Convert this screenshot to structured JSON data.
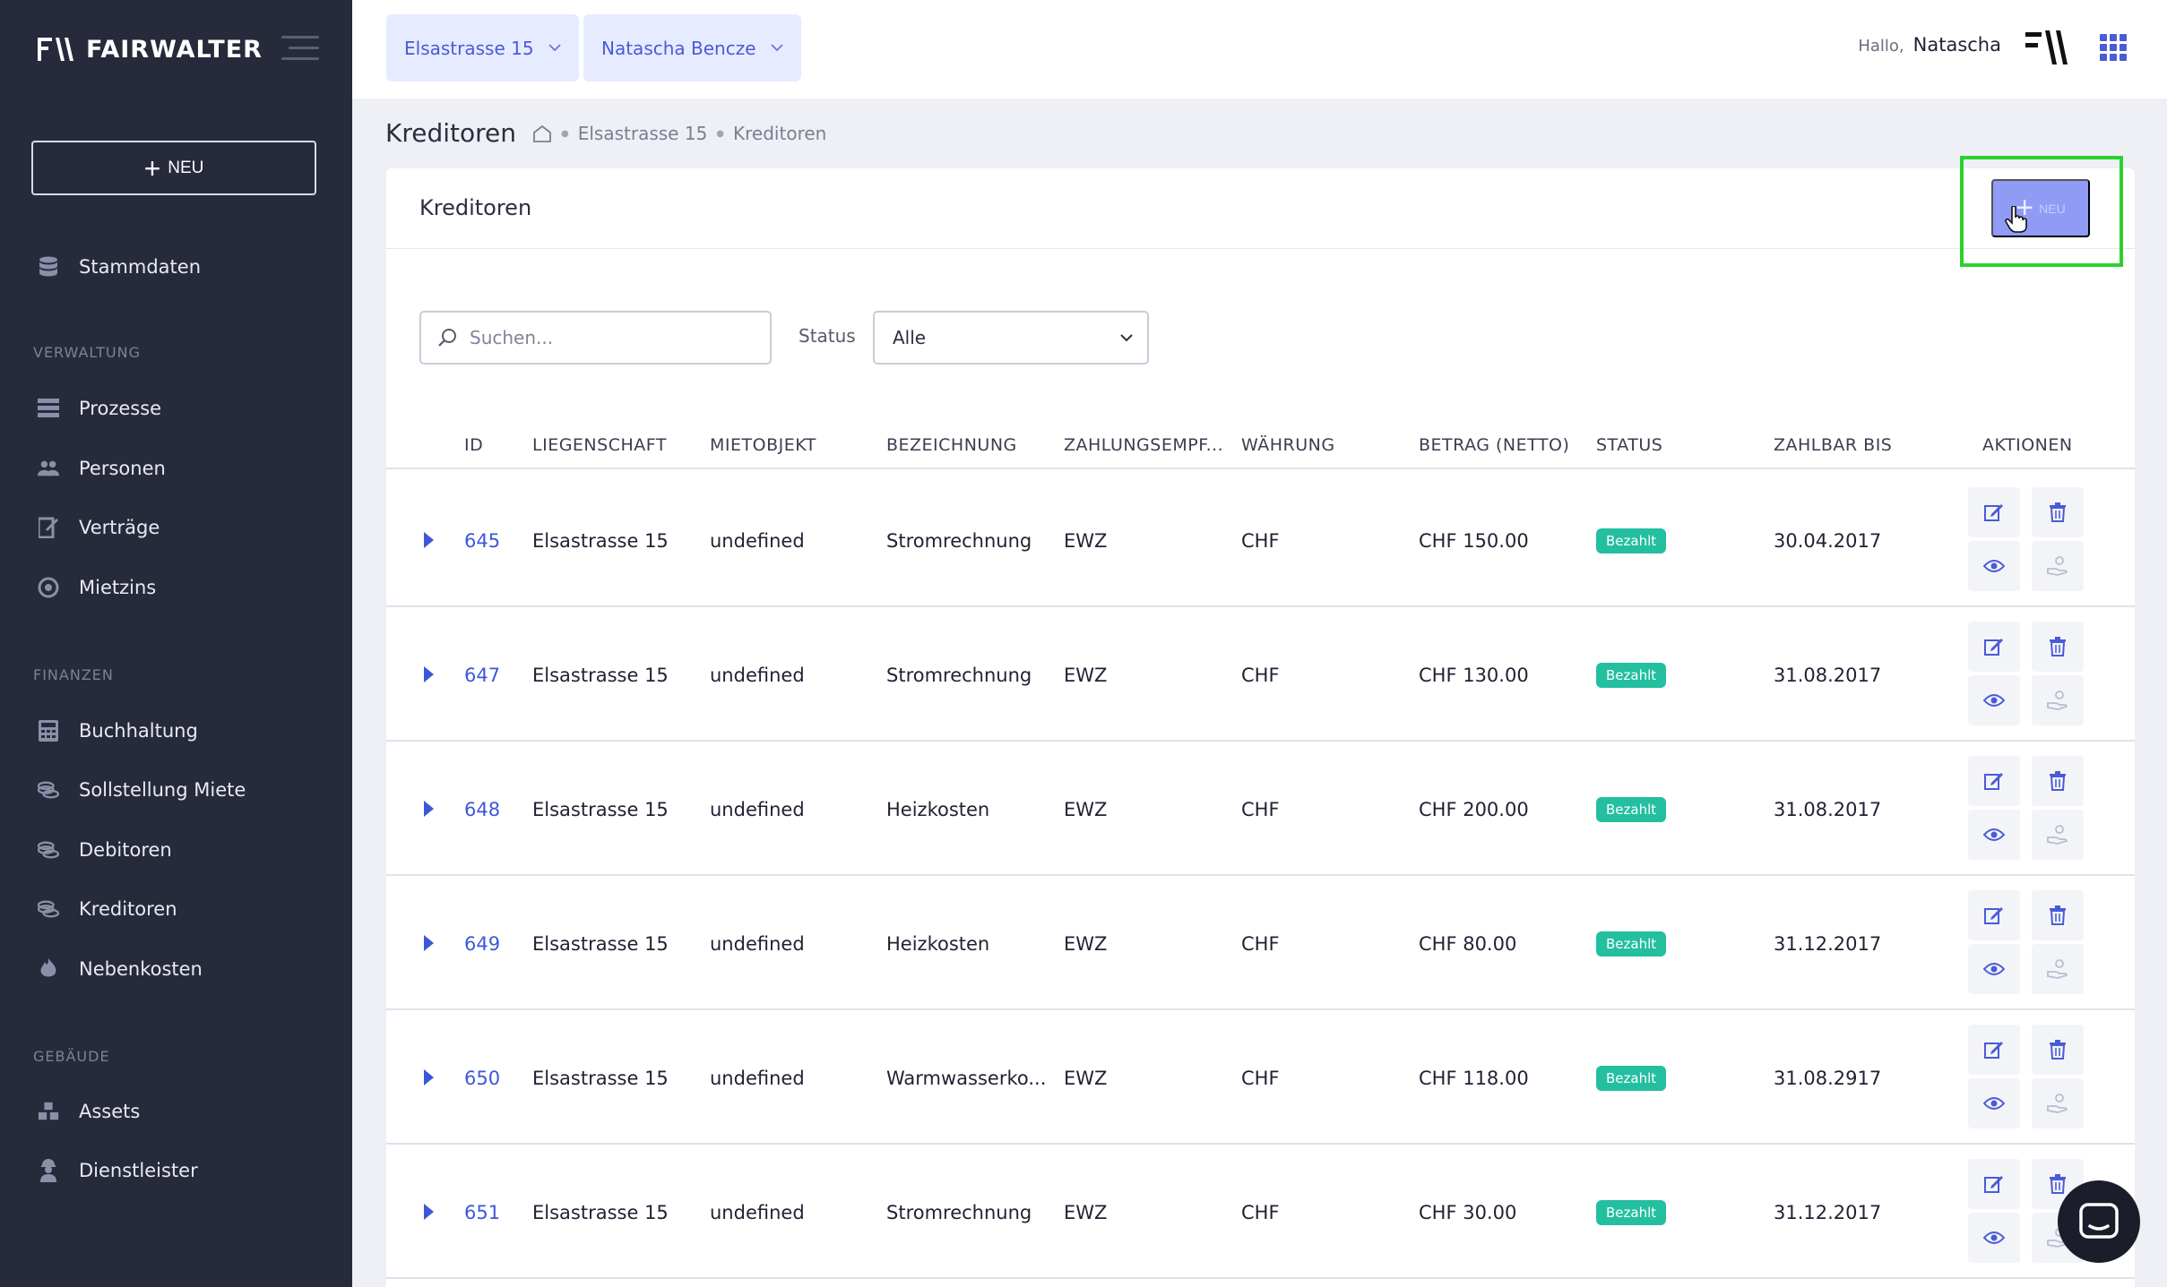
{
  "app": {
    "brand": "FAIRWALTER"
  },
  "sidebar": {
    "new_button": "NEU",
    "top_items": [
      {
        "label": "Stammdaten",
        "icon": "database-icon"
      }
    ],
    "sections": [
      {
        "title": "VERWALTUNG",
        "items": [
          {
            "label": "Prozesse",
            "icon": "process-icon"
          },
          {
            "label": "Personen",
            "icon": "people-icon"
          },
          {
            "label": "Verträge",
            "icon": "contract-icon"
          },
          {
            "label": "Mietzins",
            "icon": "rent-icon"
          }
        ]
      },
      {
        "title": "FINANZEN",
        "items": [
          {
            "label": "Buchhaltung",
            "icon": "accounting-icon"
          },
          {
            "label": "Sollstellung Miete",
            "icon": "coins-icon"
          },
          {
            "label": "Debitoren",
            "icon": "coins-icon"
          },
          {
            "label": "Kreditoren",
            "icon": "coins-icon"
          },
          {
            "label": "Nebenkosten",
            "icon": "flame-icon"
          }
        ]
      },
      {
        "title": "GEBÄUDE",
        "items": [
          {
            "label": "Assets",
            "icon": "boxes-icon"
          },
          {
            "label": "Dienstleister",
            "icon": "worker-icon"
          }
        ]
      }
    ]
  },
  "topbar": {
    "property_selector": "Elsastrasse 15",
    "person_selector": "Natascha Bencze",
    "greeting": "Hallo,",
    "user_name": "Natascha"
  },
  "breadcrumb": {
    "page_title": "Kreditoren",
    "crumbs": [
      "Elsastrasse 15",
      "Kreditoren"
    ]
  },
  "card": {
    "title": "Kreditoren",
    "add_button": "NEU",
    "search_placeholder": "Suchen...",
    "status_label": "Status",
    "status_value": "Alle"
  },
  "table": {
    "headers": {
      "id": "ID",
      "liegenschaft": "LIEGENSCHAFT",
      "mietobjekt": "MIETOBJEKT",
      "bezeichnung": "BEZEICHNUNG",
      "zahlungsempf": "ZAHLUNGSEMPF...",
      "waehrung": "WÄHRUNG",
      "betrag": "BETRAG (NETTO)",
      "status": "STATUS",
      "zahlbar": "ZAHLBAR BIS",
      "aktionen": "AKTIONEN"
    },
    "rows": [
      {
        "id": "645",
        "liegenschaft": "Elsastrasse 15",
        "mietobjekt": "undefined",
        "bezeichnung": "Stromrechnung",
        "zahlungsempf": "EWZ",
        "waehrung": "CHF",
        "betrag": "CHF 150.00",
        "status": "Bezahlt",
        "zahlbar": "30.04.2017"
      },
      {
        "id": "647",
        "liegenschaft": "Elsastrasse 15",
        "mietobjekt": "undefined",
        "bezeichnung": "Stromrechnung",
        "zahlungsempf": "EWZ",
        "waehrung": "CHF",
        "betrag": "CHF 130.00",
        "status": "Bezahlt",
        "zahlbar": "31.08.2017"
      },
      {
        "id": "648",
        "liegenschaft": "Elsastrasse 15",
        "mietobjekt": "undefined",
        "bezeichnung": "Heizkosten",
        "zahlungsempf": "EWZ",
        "waehrung": "CHF",
        "betrag": "CHF 200.00",
        "status": "Bezahlt",
        "zahlbar": "31.08.2017"
      },
      {
        "id": "649",
        "liegenschaft": "Elsastrasse 15",
        "mietobjekt": "undefined",
        "bezeichnung": "Heizkosten",
        "zahlungsempf": "EWZ",
        "waehrung": "CHF",
        "betrag": "CHF 80.00",
        "status": "Bezahlt",
        "zahlbar": "31.12.2017"
      },
      {
        "id": "650",
        "liegenschaft": "Elsastrasse 15",
        "mietobjekt": "undefined",
        "bezeichnung": "Warmwasserko...",
        "zahlungsempf": "EWZ",
        "waehrung": "CHF",
        "betrag": "CHF 118.00",
        "status": "Bezahlt",
        "zahlbar": "31.08.2917"
      },
      {
        "id": "651",
        "liegenschaft": "Elsastrasse 15",
        "mietobjekt": "undefined",
        "bezeichnung": "Stromrechnung",
        "zahlungsempf": "EWZ",
        "waehrung": "CHF",
        "betrag": "CHF 30.00",
        "status": "Bezahlt",
        "zahlbar": "31.12.2017"
      }
    ]
  },
  "colors": {
    "sidebar_bg": "#262a3b",
    "accent": "#4a5bd6",
    "status_paid": "#23bfa0",
    "highlight": "#2bd12b"
  }
}
